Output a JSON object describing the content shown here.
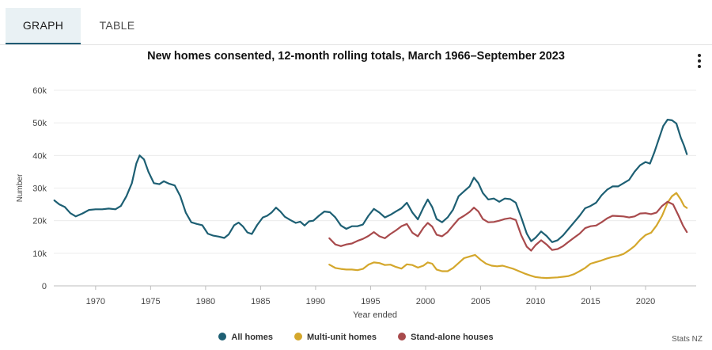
{
  "tabs": [
    {
      "label": "GRAPH",
      "active": true
    },
    {
      "label": "TABLE",
      "active": false
    }
  ],
  "menu_icon": "kebab-menu-icon",
  "credit": "Stats NZ",
  "chart_data": {
    "type": "line",
    "title": "New homes consented, 12-month rolling totals, March 1966–September 2023",
    "xlabel": "Year ended",
    "ylabel": "Number",
    "xlim": [
      1966.2,
      2024.6
    ],
    "ylim": [
      0,
      60000
    ],
    "xticks": [
      1970,
      1975,
      1980,
      1985,
      1990,
      1995,
      2000,
      2005,
      2010,
      2015,
      2020
    ],
    "yticks": [
      0,
      10000,
      20000,
      30000,
      40000,
      50000,
      60000
    ],
    "ytick_labels": [
      "0",
      "10k",
      "20k",
      "30k",
      "40k",
      "50k",
      "60k"
    ],
    "grid": true,
    "legend_position": "bottom",
    "series": [
      {
        "name": "All homes",
        "color": "#1d5f73",
        "points": [
          [
            1966.25,
            26200
          ],
          [
            1966.7,
            25000
          ],
          [
            1967.2,
            24200
          ],
          [
            1967.7,
            22300
          ],
          [
            1968.2,
            21300
          ],
          [
            1968.8,
            22200
          ],
          [
            1969.4,
            23300
          ],
          [
            1970,
            23500
          ],
          [
            1970.6,
            23500
          ],
          [
            1971.2,
            23700
          ],
          [
            1971.8,
            23500
          ],
          [
            1972.3,
            24500
          ],
          [
            1972.8,
            27500
          ],
          [
            1973.3,
            31500
          ],
          [
            1973.7,
            37500
          ],
          [
            1974,
            40000
          ],
          [
            1974.4,
            38800
          ],
          [
            1974.8,
            35000
          ],
          [
            1975.3,
            31500
          ],
          [
            1975.8,
            31200
          ],
          [
            1976.2,
            32100
          ],
          [
            1976.7,
            31300
          ],
          [
            1977.2,
            30800
          ],
          [
            1977.7,
            27500
          ],
          [
            1978.2,
            22500
          ],
          [
            1978.7,
            19500
          ],
          [
            1979.2,
            19000
          ],
          [
            1979.7,
            18600
          ],
          [
            1980.2,
            16000
          ],
          [
            1980.7,
            15400
          ],
          [
            1981.2,
            15100
          ],
          [
            1981.7,
            14700
          ],
          [
            1982.1,
            15800
          ],
          [
            1982.6,
            18600
          ],
          [
            1983,
            19400
          ],
          [
            1983.4,
            18200
          ],
          [
            1983.8,
            16400
          ],
          [
            1984.2,
            15900
          ],
          [
            1984.7,
            18700
          ],
          [
            1985.2,
            21000
          ],
          [
            1985.6,
            21500
          ],
          [
            1986,
            22500
          ],
          [
            1986.4,
            24000
          ],
          [
            1986.8,
            22800
          ],
          [
            1987.2,
            21200
          ],
          [
            1987.7,
            20200
          ],
          [
            1988.2,
            19300
          ],
          [
            1988.6,
            19700
          ],
          [
            1989,
            18500
          ],
          [
            1989.4,
            19800
          ],
          [
            1989.8,
            20000
          ],
          [
            1990.3,
            21500
          ],
          [
            1990.8,
            22800
          ],
          [
            1991.3,
            22600
          ],
          [
            1991.8,
            21000
          ],
          [
            1992.3,
            18500
          ],
          [
            1992.8,
            17500
          ],
          [
            1993.3,
            18300
          ],
          [
            1993.8,
            18300
          ],
          [
            1994.3,
            18800
          ],
          [
            1994.8,
            21500
          ],
          [
            1995.3,
            23600
          ],
          [
            1995.8,
            22500
          ],
          [
            1996.3,
            21000
          ],
          [
            1996.8,
            21800
          ],
          [
            1997.3,
            22800
          ],
          [
            1997.8,
            23800
          ],
          [
            1998.3,
            25500
          ],
          [
            1998.8,
            22500
          ],
          [
            1999.3,
            20400
          ],
          [
            1999.8,
            24000
          ],
          [
            2000.2,
            26500
          ],
          [
            2000.6,
            24200
          ],
          [
            2001,
            20500
          ],
          [
            2001.5,
            19500
          ],
          [
            2002,
            21000
          ],
          [
            2002.5,
            23400
          ],
          [
            2003,
            27500
          ],
          [
            2003.5,
            29000
          ],
          [
            2004,
            30500
          ],
          [
            2004.4,
            33200
          ],
          [
            2004.8,
            31500
          ],
          [
            2005.2,
            28500
          ],
          [
            2005.7,
            26500
          ],
          [
            2006.2,
            26800
          ],
          [
            2006.7,
            25800
          ],
          [
            2007.2,
            26800
          ],
          [
            2007.7,
            26600
          ],
          [
            2008.2,
            25500
          ],
          [
            2008.7,
            21000
          ],
          [
            2009.2,
            16000
          ],
          [
            2009.6,
            13700
          ],
          [
            2010,
            14800
          ],
          [
            2010.5,
            16700
          ],
          [
            2011,
            15300
          ],
          [
            2011.5,
            13400
          ],
          [
            2012,
            14000
          ],
          [
            2012.5,
            15500
          ],
          [
            2013,
            17500
          ],
          [
            2013.5,
            19500
          ],
          [
            2014,
            21500
          ],
          [
            2014.5,
            23800
          ],
          [
            2015,
            24500
          ],
          [
            2015.5,
            25500
          ],
          [
            2016,
            27800
          ],
          [
            2016.5,
            29500
          ],
          [
            2017,
            30500
          ],
          [
            2017.5,
            30500
          ],
          [
            2018,
            31500
          ],
          [
            2018.5,
            32500
          ],
          [
            2019,
            35000
          ],
          [
            2019.5,
            37000
          ],
          [
            2020,
            38000
          ],
          [
            2020.4,
            37500
          ],
          [
            2020.8,
            41000
          ],
          [
            2021.2,
            45000
          ],
          [
            2021.6,
            49000
          ],
          [
            2022,
            51000
          ],
          [
            2022.4,
            50800
          ],
          [
            2022.8,
            49800
          ],
          [
            2023.2,
            45500
          ],
          [
            2023.5,
            43000
          ],
          [
            2023.75,
            40400
          ]
        ]
      },
      {
        "name": "Multi-unit homes",
        "color": "#d4a72c",
        "points": [
          [
            1991.25,
            6500
          ],
          [
            1991.8,
            5500
          ],
          [
            1992.3,
            5200
          ],
          [
            1992.8,
            5000
          ],
          [
            1993.3,
            5000
          ],
          [
            1993.8,
            4800
          ],
          [
            1994.3,
            5200
          ],
          [
            1994.8,
            6500
          ],
          [
            1995.3,
            7200
          ],
          [
            1995.8,
            7000
          ],
          [
            1996.3,
            6400
          ],
          [
            1996.8,
            6500
          ],
          [
            1997.3,
            5800
          ],
          [
            1997.8,
            5300
          ],
          [
            1998.3,
            6600
          ],
          [
            1998.8,
            6400
          ],
          [
            1999.3,
            5600
          ],
          [
            1999.8,
            6200
          ],
          [
            2000.2,
            7200
          ],
          [
            2000.6,
            6800
          ],
          [
            2001,
            5000
          ],
          [
            2001.5,
            4500
          ],
          [
            2002,
            4500
          ],
          [
            2002.5,
            5500
          ],
          [
            2003,
            7000
          ],
          [
            2003.5,
            8500
          ],
          [
            2004,
            9000
          ],
          [
            2004.5,
            9500
          ],
          [
            2005,
            8000
          ],
          [
            2005.5,
            6800
          ],
          [
            2006,
            6200
          ],
          [
            2006.5,
            6000
          ],
          [
            2007,
            6200
          ],
          [
            2007.5,
            5700
          ],
          [
            2008,
            5200
          ],
          [
            2008.5,
            4500
          ],
          [
            2009,
            3800
          ],
          [
            2009.5,
            3200
          ],
          [
            2010,
            2700
          ],
          [
            2010.5,
            2500
          ],
          [
            2011,
            2400
          ],
          [
            2011.5,
            2500
          ],
          [
            2012,
            2600
          ],
          [
            2012.5,
            2800
          ],
          [
            2013,
            3000
          ],
          [
            2013.5,
            3600
          ],
          [
            2014,
            4500
          ],
          [
            2014.5,
            5500
          ],
          [
            2015,
            6800
          ],
          [
            2015.5,
            7300
          ],
          [
            2016,
            7800
          ],
          [
            2016.5,
            8400
          ],
          [
            2017,
            8900
          ],
          [
            2017.5,
            9200
          ],
          [
            2018,
            9800
          ],
          [
            2018.5,
            10900
          ],
          [
            2019,
            12200
          ],
          [
            2019.5,
            14100
          ],
          [
            2020,
            15600
          ],
          [
            2020.5,
            16300
          ],
          [
            2021,
            18500
          ],
          [
            2021.5,
            21500
          ],
          [
            2022,
            25500
          ],
          [
            2022.4,
            27500
          ],
          [
            2022.8,
            28500
          ],
          [
            2023.2,
            26500
          ],
          [
            2023.5,
            24500
          ],
          [
            2023.75,
            23900
          ]
        ]
      },
      {
        "name": "Stand-alone houses",
        "color": "#a84a4c",
        "points": [
          [
            1991.25,
            14600
          ],
          [
            1991.8,
            12700
          ],
          [
            1992.3,
            12200
          ],
          [
            1992.8,
            12700
          ],
          [
            1993.3,
            13000
          ],
          [
            1993.8,
            13800
          ],
          [
            1994.3,
            14400
          ],
          [
            1994.8,
            15300
          ],
          [
            1995.3,
            16500
          ],
          [
            1995.8,
            15200
          ],
          [
            1996.3,
            14600
          ],
          [
            1996.8,
            15900
          ],
          [
            1997.3,
            17000
          ],
          [
            1997.8,
            18300
          ],
          [
            1998.3,
            19000
          ],
          [
            1998.8,
            16300
          ],
          [
            1999.3,
            15200
          ],
          [
            1999.8,
            17800
          ],
          [
            2000.2,
            19300
          ],
          [
            2000.6,
            18200
          ],
          [
            2001,
            15700
          ],
          [
            2001.5,
            15200
          ],
          [
            2002,
            16500
          ],
          [
            2002.5,
            18500
          ],
          [
            2003,
            20500
          ],
          [
            2003.5,
            21500
          ],
          [
            2004,
            22700
          ],
          [
            2004.4,
            24000
          ],
          [
            2004.8,
            22800
          ],
          [
            2005.2,
            20500
          ],
          [
            2005.7,
            19500
          ],
          [
            2006.2,
            19600
          ],
          [
            2006.7,
            20000
          ],
          [
            2007.2,
            20500
          ],
          [
            2007.7,
            20800
          ],
          [
            2008.2,
            20200
          ],
          [
            2008.7,
            15500
          ],
          [
            2009.2,
            12000
          ],
          [
            2009.6,
            10800
          ],
          [
            2010,
            12500
          ],
          [
            2010.5,
            14000
          ],
          [
            2011,
            12700
          ],
          [
            2011.5,
            11000
          ],
          [
            2012,
            11300
          ],
          [
            2012.5,
            12200
          ],
          [
            2013,
            13500
          ],
          [
            2013.5,
            14800
          ],
          [
            2014,
            16000
          ],
          [
            2014.5,
            17700
          ],
          [
            2015,
            18300
          ],
          [
            2015.5,
            18500
          ],
          [
            2016,
            19500
          ],
          [
            2016.5,
            20700
          ],
          [
            2017,
            21500
          ],
          [
            2017.5,
            21400
          ],
          [
            2018,
            21300
          ],
          [
            2018.5,
            21000
          ],
          [
            2019,
            21300
          ],
          [
            2019.5,
            22200
          ],
          [
            2020,
            22300
          ],
          [
            2020.5,
            22000
          ],
          [
            2021,
            22500
          ],
          [
            2021.5,
            24500
          ],
          [
            2022,
            25800
          ],
          [
            2022.5,
            25000
          ],
          [
            2023,
            21500
          ],
          [
            2023.4,
            18500
          ],
          [
            2023.75,
            16500
          ]
        ]
      }
    ]
  }
}
